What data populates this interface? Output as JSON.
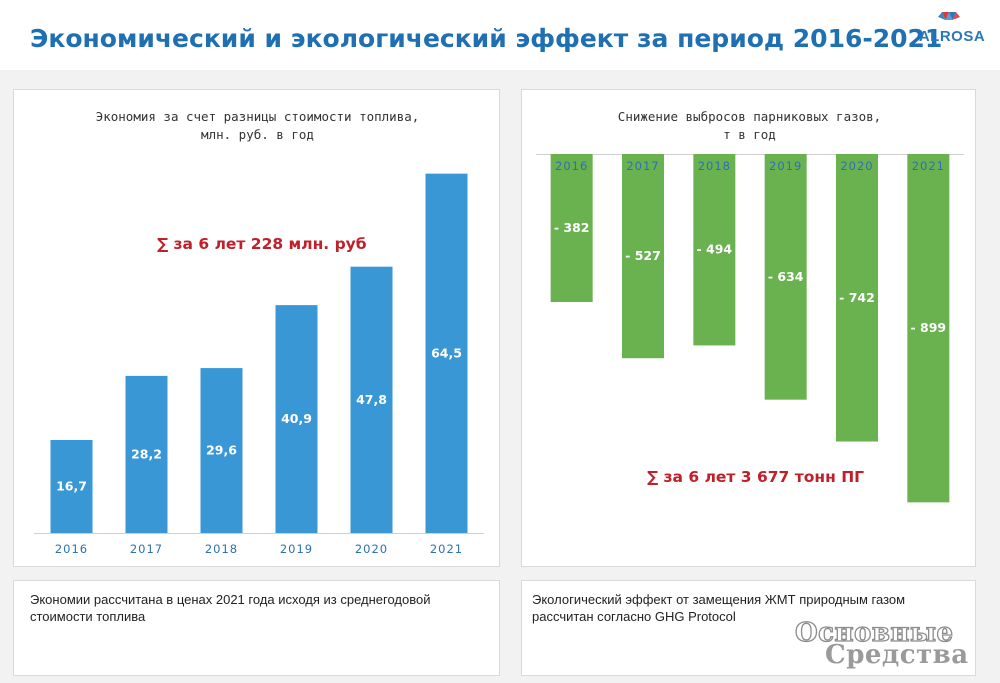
{
  "header": {
    "title": "Экономический и экологический эффект за период 2016-2021",
    "logo_text": "ALROSA"
  },
  "colors": {
    "title": "#1f6fb3",
    "bar_blue": "#3a97d6",
    "bar_green": "#6ab150",
    "total_red": "#c0202a"
  },
  "chart_data": [
    {
      "type": "bar",
      "title": "Экономия за счет разницы стоимости топлива,\nмлн. руб. в год",
      "categories": [
        "2016",
        "2017",
        "2018",
        "2019",
        "2020",
        "2021"
      ],
      "values": [
        16.7,
        28.2,
        29.6,
        40.9,
        47.8,
        64.5
      ],
      "value_labels": [
        "16,7",
        "28,2",
        "29,6",
        "40,9",
        "47,8",
        "64,5"
      ],
      "ylim": [
        0,
        70
      ],
      "grid": false,
      "annotation": "∑ за 6 лет 228 млн. руб"
    },
    {
      "type": "bar",
      "title": "Снижение выбросов парниковых газов,\nт в год",
      "categories": [
        "2016",
        "2017",
        "2018",
        "2019",
        "2020",
        "2021"
      ],
      "values": [
        -382,
        -527,
        -494,
        -634,
        -742,
        -899
      ],
      "value_labels": [
        "- 382",
        "- 527",
        "- 494",
        "- 634",
        "- 742",
        "- 899"
      ],
      "ylim": [
        -1000,
        0
      ],
      "grid": false,
      "annotation": "∑ за 6 лет 3 677 тонн ПГ"
    }
  ],
  "notes": {
    "left": "Экономии рассчитана в ценах 2021 года исходя из среднегодовой стоимости топлива",
    "right": "Экологический эффект от замещения ЖМТ природным газом рассчитан согласно GHG Protocol"
  },
  "watermark": {
    "line1": "Основные",
    "line2": "Средства"
  }
}
